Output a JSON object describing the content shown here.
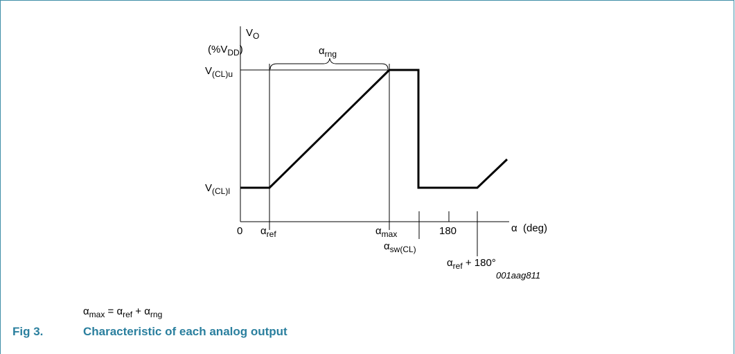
{
  "axis": {
    "y_label": {
      "base": "V",
      "sub": "O"
    },
    "y_unit": {
      "prefix": "(%V",
      "sub": "DD",
      "suffix": ")"
    },
    "y_upper": {
      "base": "V",
      "sub": "(CL)u"
    },
    "y_lower": {
      "base": "V",
      "sub": "(CL)l"
    },
    "x_origin": "0",
    "x_ref": {
      "base": "α",
      "sub": "ref"
    },
    "x_max": {
      "base": "α",
      "sub": "max"
    },
    "x_sw": {
      "base": "α",
      "sub": "sw(CL)"
    },
    "x_180": "180",
    "x_ref180": {
      "base": "α",
      "sub": "ref",
      "suffix": " + 180°"
    },
    "x_label": "α  (deg)"
  },
  "range_label": {
    "base": "α",
    "sub": "rng"
  },
  "figure_id": "001aag811",
  "formula": [
    "α",
    "max",
    " = α",
    "ref",
    " + α",
    "rng"
  ],
  "caption": {
    "number": "Fig 3.",
    "title": "Characteristic of each analog output"
  }
}
